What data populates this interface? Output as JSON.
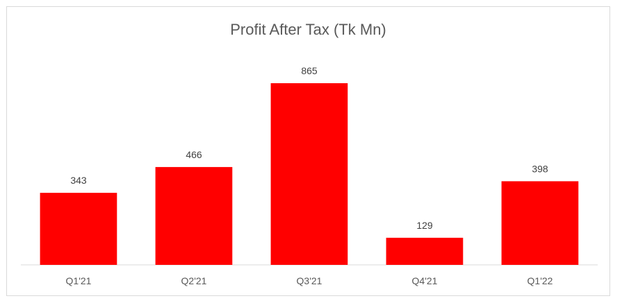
{
  "chart_data": {
    "type": "bar",
    "title": "Profit After Tax (Tk Mn)",
    "categories": [
      "Q1'21",
      "Q2'21",
      "Q3'21",
      "Q4'21",
      "Q1'22"
    ],
    "values": [
      343,
      466,
      865,
      129,
      398
    ],
    "data_labels": [
      "343",
      "466",
      "865",
      "129",
      "398"
    ],
    "xlabel": "",
    "ylabel": "",
    "ylim": [
      0,
      1000
    ],
    "bar_color": "#ff0000",
    "grid": false,
    "legend": "none"
  }
}
